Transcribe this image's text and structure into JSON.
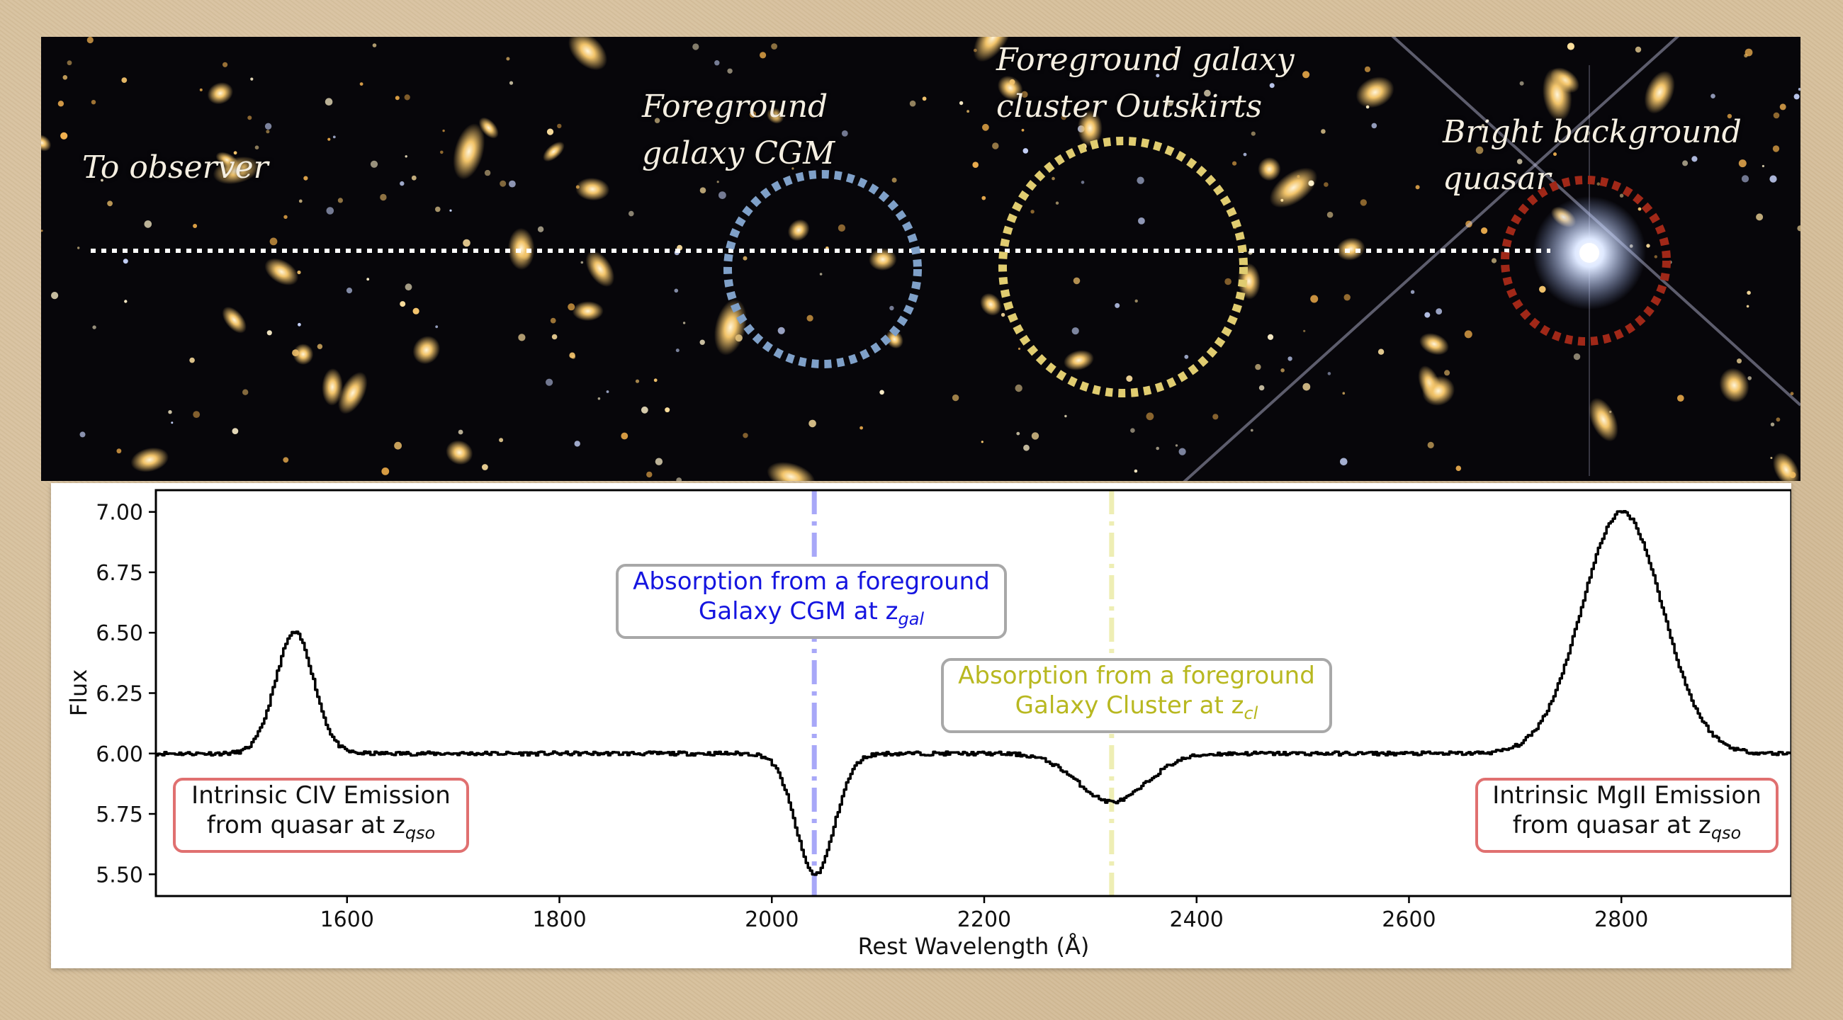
{
  "sky_panel": {
    "labels": {
      "observer": "To  observer",
      "cgm": "Foreground\ngalaxy CGM",
      "cluster": "Foreground galaxy\ncluster Outskirts",
      "quasar": "Bright background quasar"
    },
    "circle_colors": {
      "cgm": "#7fa0c8",
      "cluster": "#e0cc70",
      "quasar": "#a02818"
    }
  },
  "chart_data": {
    "type": "line",
    "xlabel": "Rest Wavelength (Å)",
    "ylabel": "Flux",
    "xlim": [
      1420,
      2960
    ],
    "ylim": [
      5.41,
      7.09
    ],
    "xticks": [
      1600,
      1800,
      2000,
      2200,
      2400,
      2600,
      2800
    ],
    "yticks": [
      "5.50",
      "5.75",
      "6.00",
      "6.25",
      "6.50",
      "6.75",
      "7.00"
    ],
    "grid": false,
    "continuum": 6.0,
    "features": [
      {
        "kind": "emission",
        "center": 1550,
        "amplitude": 0.5,
        "sigma": 18
      },
      {
        "kind": "absorption",
        "center": 2040,
        "amplitude": -0.5,
        "sigma": 18
      },
      {
        "kind": "absorption",
        "center": 2320,
        "amplitude": -0.2,
        "sigma": 32
      },
      {
        "kind": "emission",
        "center": 2800,
        "amplitude": 1.0,
        "sigma": 38
      }
    ],
    "series": [
      {
        "x": [
          1420,
          1500,
          1520,
          1530,
          1540,
          1550,
          1560,
          1570,
          1580,
          1600,
          1700,
          1900,
          1980,
          2000,
          2010,
          2020,
          2030,
          2040,
          2050,
          2060,
          2070,
          2080,
          2100,
          2200,
          2250,
          2280,
          2300,
          2320,
          2340,
          2360,
          2390,
          2420,
          2600,
          2700,
          2720,
          2740,
          2760,
          2780,
          2800,
          2820,
          2840,
          2860,
          2880,
          2900,
          2960
        ],
        "y": [
          6.0,
          6.0,
          6.13,
          6.26,
          6.43,
          6.5,
          6.43,
          6.26,
          6.13,
          6.01,
          6.0,
          6.0,
          5.99,
          5.94,
          5.86,
          5.75,
          5.6,
          5.5,
          5.6,
          5.75,
          5.86,
          5.94,
          6.0,
          6.0,
          5.96,
          5.9,
          5.84,
          5.8,
          5.84,
          5.9,
          5.96,
          6.0,
          6.0,
          6.03,
          6.1,
          6.29,
          6.57,
          6.87,
          7.0,
          6.87,
          6.57,
          6.29,
          6.1,
          6.03,
          6.0
        ],
        "color": "#000000"
      }
    ],
    "vlines": [
      {
        "x": 2040,
        "color": "#a8a8f8",
        "style": "dashdot"
      },
      {
        "x": 2320,
        "color": "#eeeeb4",
        "style": "dashdot"
      }
    ],
    "annotations": {
      "cgm": {
        "line1": "Absorption from a foreground",
        "line2": "Galaxy CGM at z",
        "sub": "gal",
        "color": "#1515e0"
      },
      "cluster": {
        "line1": "Absorption from a foreground",
        "line2": "Galaxy Cluster at z",
        "sub": "cl",
        "color": "#b8b820"
      },
      "civ": {
        "line1": "Intrinsic CIV Emission",
        "line2": "from quasar at z",
        "sub": "qso",
        "color": "#111111"
      },
      "mgii": {
        "line1": "Intrinsic MgII Emission",
        "line2": "from quasar at z",
        "sub": "qso",
        "color": "#111111"
      }
    }
  }
}
